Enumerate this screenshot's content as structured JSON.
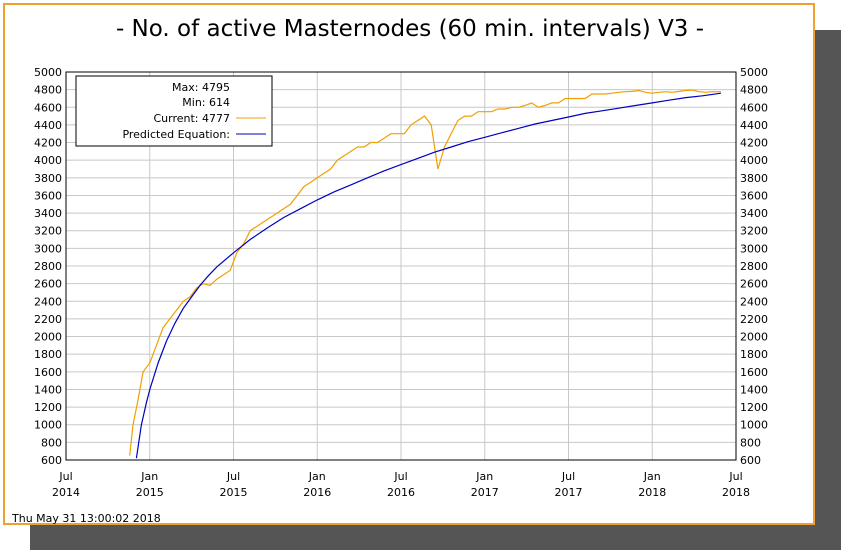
{
  "chart_data": {
    "type": "line",
    "title": "- No. of active Masternodes (60 min. intervals) V3 -",
    "timestamp": "Thu May 31 13:00:02 2018",
    "ylim": [
      600,
      5000
    ],
    "yticks": [
      "600",
      "800",
      "1000",
      "1200",
      "1400",
      "1600",
      "1800",
      "2000",
      "2200",
      "2400",
      "2600",
      "2800",
      "3000",
      "3200",
      "3400",
      "3600",
      "3800",
      "4000",
      "4200",
      "4400",
      "4600",
      "4800",
      "5000"
    ],
    "xticks": [
      {
        "line1": "Jul",
        "line2": "2014"
      },
      {
        "line1": "Jan",
        "line2": "2015"
      },
      {
        "line1": "Jul",
        "line2": "2015"
      },
      {
        "line1": "Jan",
        "line2": "2016"
      },
      {
        "line1": "Jul",
        "line2": "2016"
      },
      {
        "line1": "Jan",
        "line2": "2017"
      },
      {
        "line1": "Jul",
        "line2": "2017"
      },
      {
        "line1": "Jan",
        "line2": "2018"
      },
      {
        "line1": "Jul",
        "line2": "2018"
      }
    ],
    "legend": {
      "position": "top-left",
      "max": "Max: 4795",
      "min": "Min: 614",
      "current": "Current: 4777",
      "predicted": "Predicted Equation:"
    },
    "series": [
      {
        "name": "Current",
        "color": "#f0a000",
        "x": [
          2014.88,
          2014.9,
          2014.93,
          2014.96,
          2015.0,
          2015.04,
          2015.08,
          2015.12,
          2015.16,
          2015.2,
          2015.24,
          2015.28,
          2015.32,
          2015.36,
          2015.4,
          2015.44,
          2015.48,
          2015.52,
          2015.56,
          2015.6,
          2015.64,
          2015.68,
          2015.72,
          2015.76,
          2015.8,
          2015.84,
          2015.88,
          2015.92,
          2015.96,
          2016.0,
          2016.04,
          2016.08,
          2016.12,
          2016.16,
          2016.2,
          2016.24,
          2016.28,
          2016.32,
          2016.36,
          2016.4,
          2016.44,
          2016.48,
          2016.52,
          2016.56,
          2016.6,
          2016.64,
          2016.68,
          2016.72,
          2016.76,
          2016.8,
          2016.84,
          2016.88,
          2016.92,
          2016.96,
          2017.0,
          2017.04,
          2017.08,
          2017.12,
          2017.16,
          2017.2,
          2017.24,
          2017.28,
          2017.32,
          2017.36,
          2017.4,
          2017.44,
          2017.48,
          2017.52,
          2017.56,
          2017.6,
          2017.64,
          2017.68,
          2017.72,
          2017.76,
          2017.8,
          2017.84,
          2017.88,
          2017.92,
          2017.96,
          2018.0,
          2018.04,
          2018.08,
          2018.12,
          2018.16,
          2018.2,
          2018.24,
          2018.28,
          2018.32,
          2018.36,
          2018.4,
          2018.41
        ],
        "y": [
          650,
          1000,
          1280,
          1600,
          1700,
          1900,
          2100,
          2200,
          2300,
          2400,
          2450,
          2550,
          2600,
          2580,
          2650,
          2700,
          2750,
          2950,
          3050,
          3200,
          3250,
          3300,
          3350,
          3400,
          3450,
          3500,
          3600,
          3700,
          3750,
          3800,
          3850,
          3900,
          4000,
          4050,
          4100,
          4150,
          4150,
          4200,
          4200,
          4250,
          4300,
          4300,
          4300,
          4400,
          4450,
          4500,
          4400,
          3900,
          4150,
          4300,
          4450,
          4500,
          4500,
          4550,
          4550,
          4550,
          4580,
          4580,
          4600,
          4600,
          4620,
          4650,
          4600,
          4620,
          4650,
          4650,
          4700,
          4700,
          4700,
          4700,
          4750,
          4750,
          4750,
          4760,
          4770,
          4777,
          4780,
          4790,
          4770,
          4760,
          4770,
          4777,
          4770,
          4780,
          4790,
          4795,
          4777,
          4770,
          4777,
          4777,
          4777
        ]
      },
      {
        "name": "Predicted Equation",
        "color": "#0000c0",
        "x": [
          2014.92,
          2014.95,
          2014.98,
          2015.0,
          2015.05,
          2015.1,
          2015.15,
          2015.2,
          2015.25,
          2015.3,
          2015.35,
          2015.4,
          2015.5,
          2015.6,
          2015.7,
          2015.8,
          2015.9,
          2016.0,
          2016.1,
          2016.2,
          2016.3,
          2016.4,
          2016.5,
          2016.6,
          2016.7,
          2016.8,
          2016.9,
          2017.0,
          2017.1,
          2017.2,
          2017.3,
          2017.4,
          2017.5,
          2017.6,
          2017.7,
          2017.8,
          2017.9,
          2018.0,
          2018.1,
          2018.2,
          2018.3,
          2018.41
        ],
        "y": [
          620,
          1000,
          1250,
          1400,
          1700,
          1950,
          2150,
          2320,
          2450,
          2580,
          2690,
          2790,
          2950,
          3100,
          3230,
          3350,
          3450,
          3550,
          3640,
          3720,
          3800,
          3880,
          3950,
          4020,
          4090,
          4150,
          4210,
          4260,
          4310,
          4360,
          4410,
          4450,
          4490,
          4530,
          4560,
          4590,
          4620,
          4650,
          4680,
          4710,
          4730,
          4760
        ]
      }
    ],
    "colors": {
      "frame": "#f0a030",
      "current_line": "#f0a000",
      "predicted_line": "#0000c0",
      "plot_border": "#000000",
      "grid": "#c8c8c8"
    }
  }
}
